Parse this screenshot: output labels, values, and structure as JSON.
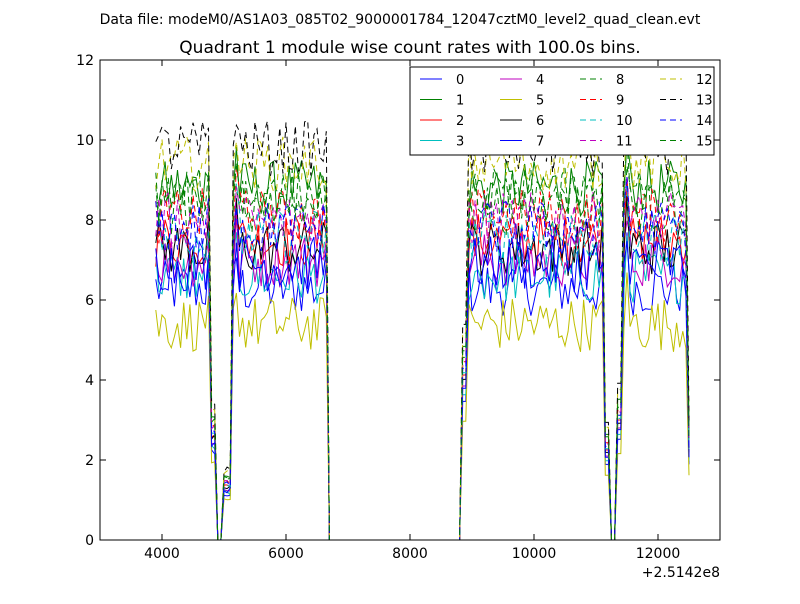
{
  "chart_data": {
    "type": "line",
    "suptitle": "Data file: modeM0/AS1A03_085T02_9000001784_12047cztM0_level2_quad_clean.evt",
    "title": "Quadrant 1 module wise count rates with 100.0s bins.",
    "xlabel": "",
    "ylabel": "",
    "x_offset_label": "+2.5142e8",
    "xlim": [
      3000,
      13000
    ],
    "ylim": [
      0,
      12
    ],
    "x_ticks": [
      4000,
      6000,
      8000,
      10000,
      12000
    ],
    "x_tick_labels": [
      "4000",
      "6000",
      "8000",
      "10000",
      "12000"
    ],
    "y_ticks": [
      0,
      2,
      4,
      6,
      8,
      10,
      12
    ],
    "y_tick_labels": [
      "0",
      "2",
      "4",
      "6",
      "8",
      "10",
      "12"
    ],
    "grid": false,
    "legend_position": "top-right",
    "legend_columns": 4,
    "bin_seconds": 100,
    "gap_intervals": [
      [
        4900,
        4950
      ],
      [
        6700,
        8800
      ],
      [
        11250,
        11300
      ]
    ],
    "series": [
      {
        "name": "0",
        "color": "#0000ff",
        "dash": "solid",
        "level": 6.3
      },
      {
        "name": "1",
        "color": "#008000",
        "dash": "solid",
        "level": 8.8
      },
      {
        "name": "2",
        "color": "#ff0000",
        "dash": "solid",
        "level": 7.5
      },
      {
        "name": "3",
        "color": "#00bfbf",
        "dash": "solid",
        "level": 6.6
      },
      {
        "name": "4",
        "color": "#bf00bf",
        "dash": "solid",
        "level": 7.0
      },
      {
        "name": "5",
        "color": "#bfbf00",
        "dash": "solid",
        "level": 5.4
      },
      {
        "name": "6",
        "color": "#000000",
        "dash": "solid",
        "level": 7.3
      },
      {
        "name": "7",
        "color": "#0000ff",
        "dash": "solid",
        "level": 6.9
      },
      {
        "name": "8",
        "color": "#008000",
        "dash": "dashed",
        "level": 8.3
      },
      {
        "name": "9",
        "color": "#ff0000",
        "dash": "dashed",
        "level": 8.1
      },
      {
        "name": "10",
        "color": "#00bfbf",
        "dash": "dashed",
        "level": 7.6
      },
      {
        "name": "11",
        "color": "#bf00bf",
        "dash": "dashed",
        "level": 8.0
      },
      {
        "name": "12",
        "color": "#bfbf00",
        "dash": "dashed",
        "level": 9.4
      },
      {
        "name": "13",
        "color": "#000000",
        "dash": "dashed",
        "level": 9.8
      },
      {
        "name": "14",
        "color": "#0000ff",
        "dash": "dashed",
        "level": 7.8
      },
      {
        "name": "15",
        "color": "#008000",
        "dash": "dashed",
        "level": 8.6
      }
    ]
  }
}
